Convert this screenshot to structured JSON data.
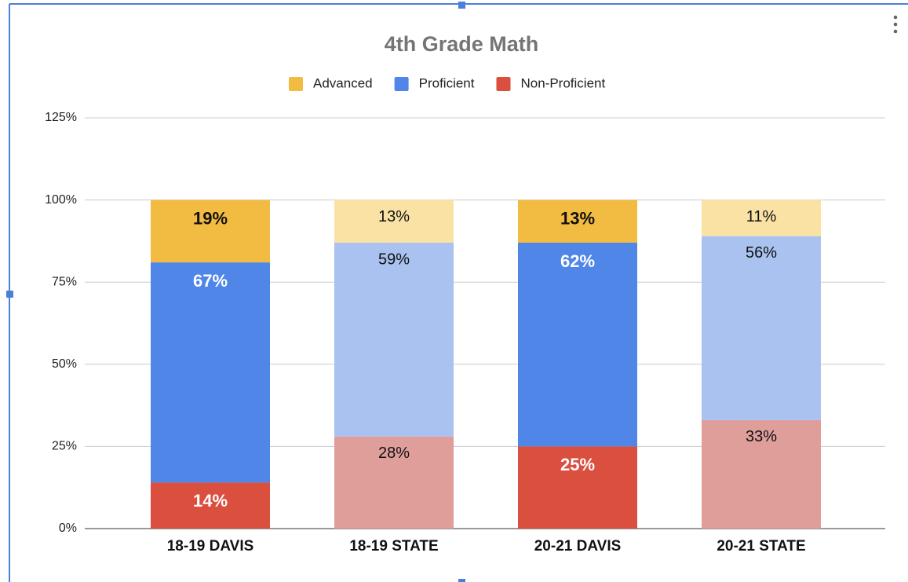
{
  "chart_data": {
    "type": "stacked_bar",
    "title": "4th Grade Math",
    "categories": [
      "18-19 DAVIS",
      "18-19 STATE",
      "20-21 DAVIS",
      "20-21 STATE"
    ],
    "series": [
      {
        "name": "Non-Proficient",
        "color": "#db4f3e",
        "colors": [
          "#db4f3e",
          "#e09e9b",
          "#db4f3e",
          "#e09e9b"
        ],
        "values": [
          14,
          28,
          25,
          33
        ],
        "value_labels": [
          "14%",
          "28%",
          "25%",
          "33%"
        ]
      },
      {
        "name": "Proficient",
        "color": "#4f86e8",
        "colors": [
          "#4f86e8",
          "#a9c2f0",
          "#4f86e8",
          "#a9c2f0"
        ],
        "values": [
          67,
          59,
          62,
          56
        ],
        "value_labels": [
          "67%",
          "59%",
          "62%",
          "56%"
        ]
      },
      {
        "name": "Advanced",
        "color": "#f2bb42",
        "colors": [
          "#f2bb42",
          "#f9e2a4",
          "#f2bb42",
          "#f9e2a4"
        ],
        "values": [
          19,
          13,
          13,
          11
        ],
        "value_labels": [
          "19%",
          "13%",
          "13%",
          "11%"
        ]
      }
    ],
    "ylim": [
      0,
      125
    ],
    "yticks": [
      {
        "value": 0,
        "label": "0%"
      },
      {
        "value": 25,
        "label": "25%"
      },
      {
        "value": 50,
        "label": "50%"
      },
      {
        "value": 75,
        "label": "75%"
      },
      {
        "value": 100,
        "label": "100%"
      },
      {
        "value": 125,
        "label": "125%"
      }
    ],
    "grid": true,
    "legend": "top"
  }
}
